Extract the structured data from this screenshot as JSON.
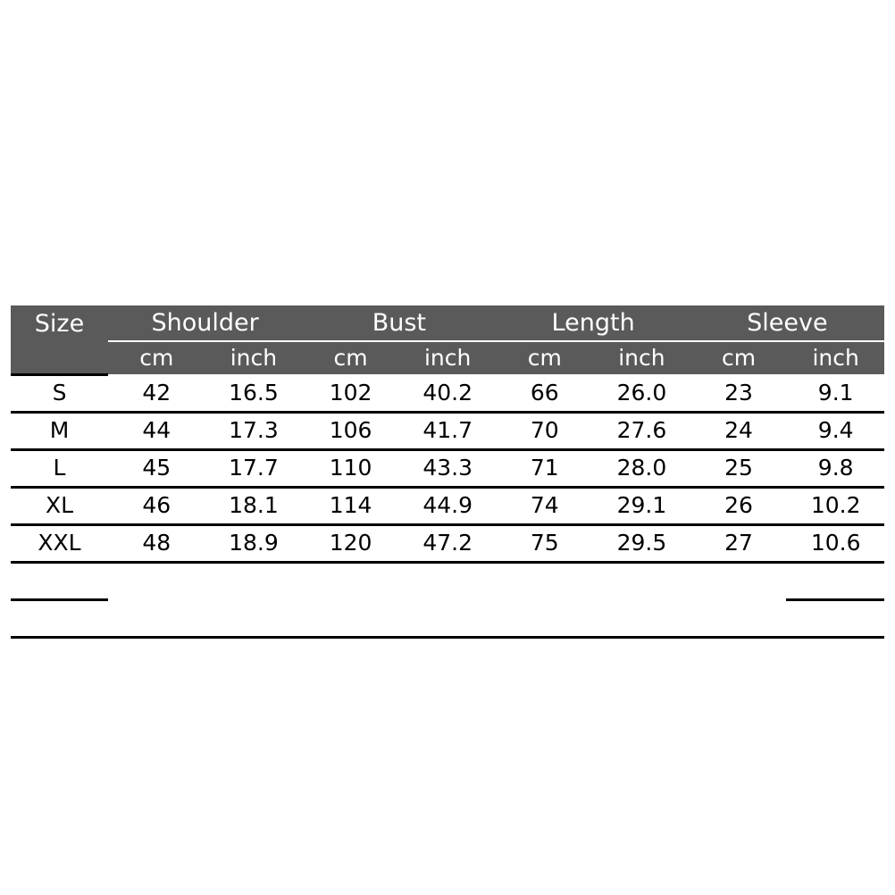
{
  "table": {
    "size_header": "Size",
    "groups": [
      "Shoulder",
      "Bust",
      "Length",
      "Sleeve"
    ],
    "units": [
      "cm",
      "inch",
      "cm",
      "inch",
      "cm",
      "inch",
      "cm",
      "inch"
    ],
    "rows": [
      {
        "size": "S",
        "values": [
          "42",
          "16.5",
          "102",
          "40.2",
          "66",
          "26.0",
          "23",
          "9.1"
        ]
      },
      {
        "size": "M",
        "values": [
          "44",
          "17.3",
          "106",
          "41.7",
          "70",
          "27.6",
          "24",
          "9.4"
        ]
      },
      {
        "size": "L",
        "values": [
          "45",
          "17.7",
          "110",
          "43.3",
          "71",
          "28.0",
          "25",
          "9.8"
        ]
      },
      {
        "size": "XL",
        "values": [
          "46",
          "18.1",
          "114",
          "44.9",
          "74",
          "29.1",
          "26",
          "10.2"
        ]
      },
      {
        "size": "XXL",
        "values": [
          "48",
          "18.9",
          "120",
          "47.2",
          "75",
          "29.5",
          "27",
          "10.6"
        ]
      }
    ],
    "header_color": "#5a5a5a"
  }
}
